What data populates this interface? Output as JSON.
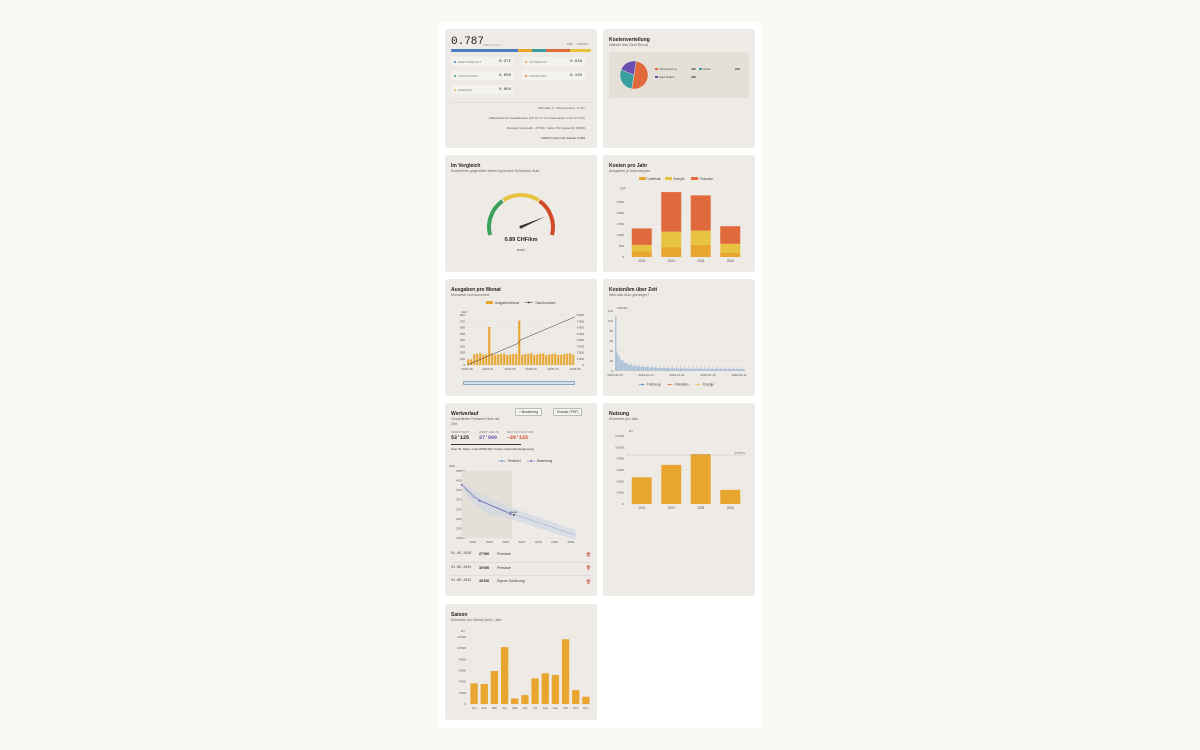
{
  "summary": {
    "value": "0.787",
    "value_unit": "CHF pro 1 km",
    "legend_left": "CHF",
    "legend_right": "TCO Pct",
    "bar_segments": [
      {
        "name": "Wertverlust",
        "fraction": 0.48,
        "color": "#4a7fc0"
      },
      {
        "name": "Unterhalt",
        "fraction": 0.1,
        "color": "#e8a530"
      },
      {
        "name": "Abschreibung",
        "fraction": 0.1,
        "color": "#3a9e9e"
      },
      {
        "name": "Fixkosten",
        "fraction": 0.17,
        "color": "#e06a3b"
      },
      {
        "name": "Energie",
        "fraction": 0.15,
        "color": "#e8c340"
      }
    ],
    "cells": [
      {
        "label": "WERTVERLUST",
        "value": "0.375",
        "color": "#4a7fc0"
      },
      {
        "label": "UNTERHALT",
        "value": "0.038",
        "color": "#e8a530"
      },
      {
        "label": "ZINSKOSTEN",
        "value": "0.000",
        "color": "#3a9e9e"
      },
      {
        "label": "FIXKOSTEN",
        "value": "0.130",
        "color": "#e06a3b"
      },
      {
        "label": "ENERGIE",
        "value": "0.050",
        "color": "#e8c340"
      }
    ],
    "notes": [
      "Wertstatt: 0 · Steuern+Vers.: 0 / km",
      "Kalkulatorische Kapitalkosten (3.5 %): 0 / km (theoretisch, nicht im TCO)",
      "Restwert (manuell): ~27'000 · Netto-TCO (gesamt): 82'800",
      "CHF/km Netto inkl. Kapital: 0.836"
    ]
  },
  "kostenverteilung": {
    "title": "Kostenverteilung",
    "subtitle": "Wählen das Geld Revolt",
    "legend": [
      {
        "label": "Versicherung",
        "value": "425",
        "color": "#e06a3b"
      },
      {
        "label": "Strom",
        "value": "245",
        "color": "#3a9e9e"
      },
      {
        "label": "Kauf Reifen",
        "value": "180",
        "color": "#6a4fb0"
      }
    ],
    "colors": {
      "slice1": "#e06a3b",
      "slice2": "#3a9e9e",
      "slice3": "#6a4fb0"
    }
  },
  "vergleich": {
    "title": "Im Vergleich",
    "subtitle": "Kostenlinie gegenüber einem typischen Schweizer Auto",
    "value": "0.89 CHF/km",
    "label": "teuer",
    "gauge_fraction": 0.82
  },
  "kosten_pro_jahr": {
    "title": "Kosten pro Jahr",
    "subtitle": "Ausgaben je Kalenderjahr",
    "legend": [
      {
        "label": "Unterhalt",
        "color": "#e8a530"
      },
      {
        "label": "Energie",
        "color": "#e8c340"
      },
      {
        "label": "Fixkosten",
        "color": "#e06a3b"
      }
    ],
    "y_unit": "CHF",
    "y_ticks": [
      "0",
      "500",
      "1'000",
      "1'500",
      "2'000",
      "2'500"
    ],
    "x_ticks": [
      "2023",
      "2024",
      "2025",
      "2026"
    ]
  },
  "ausgaben_pro_monat": {
    "title": "Ausgaben pro Monat",
    "subtitle": "Monatlich und kumuliert",
    "legend": [
      "Ausgaben/Monat",
      "Total kumuliert"
    ],
    "y_unit": "CHF",
    "y_left_ticks": [
      "0",
      "100",
      "200",
      "300",
      "400",
      "500",
      "600",
      "700",
      "800"
    ],
    "y_right_ticks": [
      "0",
      "1'000",
      "2'000",
      "3'000",
      "4'000",
      "5'000",
      "6'000",
      "7'000",
      "8'000"
    ],
    "x_ticks": [
      "2023-08",
      "2024-01",
      "2024-06",
      "2025-03",
      "2025-10",
      "2026-05"
    ]
  },
  "kosten_km": {
    "title": "Kosten/km über Zeit",
    "subtitle": "Wird das Auto günstiger?",
    "y_unit": "CHF/km",
    "y_ticks": [
      "0",
      "20",
      "40",
      "60",
      "80",
      "100",
      "120"
    ],
    "x_ticks": [
      "2023-06-15",
      "2024-01-24",
      "2024-07-01",
      "2025-01-15",
      "2026-04-11"
    ],
    "legend": [
      {
        "label": "Fahrzeug",
        "color": "#4a7fc0"
      },
      {
        "label": "Fixkosten",
        "color": "#e06a3b"
      },
      {
        "label": "Energie",
        "color": "#e8c340"
      }
    ]
  },
  "wertverlauf": {
    "title": "Wertverlauf",
    "subtitle": "Geschätzter Restwert über die Zeit",
    "btn_bewertung": "+ Bewertung",
    "btn_dossier": "Dossier (PDF)",
    "kpis": [
      {
        "label": "INVESTIERT",
        "value": "53'125",
        "color": "#222"
      },
      {
        "label": "WERT HEUTE",
        "value": "27'000",
        "color": "#6a4fb0"
      },
      {
        "label": "NETTO-POSITION",
        "value": "−26'125",
        "color": "#d04a2a"
      }
    ],
    "note": "Über 51 Jahre: netto 8'051/Jahr Kosten (nach Wertsteigerung)",
    "legend": [
      "Restwert",
      "Bewertung"
    ],
    "y_unit": "CHF",
    "y_ticks": [
      "15'000",
      "20'000",
      "25'000",
      "30'000",
      "35'000",
      "40'000",
      "45'000",
      "50'000"
    ],
    "x_ticks": [
      "2024",
      "2025",
      "2026",
      "2027",
      "2028",
      "2029",
      "2030"
    ],
    "heute_label": "Heute",
    "rows": [
      {
        "date": "01.05.2026",
        "amount": "27'000",
        "source": "Preisliste"
      },
      {
        "date": "01.06.2024",
        "amount": "30'000",
        "source": "Preisliste"
      },
      {
        "date": "01.06.2023",
        "amount": "49'100",
        "source": "Eigene Schätzung"
      }
    ]
  },
  "nutzung": {
    "title": "Nutzung",
    "subtitle": "Kilometer pro Jahr",
    "y_unit": "km",
    "y_ticks": [
      "0",
      "2'000",
      "4'000",
      "6'000",
      "8'000",
      "10'000",
      "12'000"
    ],
    "x_ticks": [
      "2023",
      "2024",
      "2025",
      "2026"
    ],
    "avg_label": "Ø 8'631",
    "chart_data": {
      "type": "bar",
      "categories": [
        "2023",
        "2024",
        "2025",
        "2026"
      ],
      "values": [
        4700,
        6900,
        8800,
        2500
      ],
      "ylim": [
        0,
        12000
      ],
      "avg": 8631
    }
  },
  "saison": {
    "title": "Saison",
    "subtitle": "Kilometer pro Monat (leer), Jahr",
    "y_unit": "km",
    "y_ticks": [
      "0",
      "2'000",
      "4'000",
      "6'000",
      "8'000",
      "10'000",
      "12'000"
    ],
    "chart_data": {
      "type": "bar",
      "categories": [
        "Jan",
        "Feb",
        "Mär",
        "Apr",
        "Mai",
        "Jun",
        "Jul",
        "Aug",
        "Sep",
        "Okt",
        "Nov",
        "Dez"
      ],
      "values": [
        3700,
        3600,
        5900,
        10200,
        1000,
        1600,
        4600,
        5500,
        5200,
        11600,
        2500,
        1300
      ],
      "ylim": [
        0,
        12000
      ]
    }
  },
  "chart_data": [
    {
      "type": "bar",
      "title": "Kosten pro Jahr",
      "categories": [
        "2023",
        "2024",
        "2025",
        "2026"
      ],
      "series": [
        {
          "name": "Unterhalt",
          "values": [
            250,
            450,
            550,
            200
          ]
        },
        {
          "name": "Energie",
          "values": [
            300,
            700,
            650,
            400
          ]
        },
        {
          "name": "Fixkosten",
          "values": [
            750,
            1800,
            1600,
            800
          ]
        }
      ],
      "ylim": [
        0,
        3000
      ]
    },
    {
      "type": "pie",
      "title": "Kostenverteilung",
      "categories": [
        "Versicherung",
        "Strom",
        "Kauf Reifen"
      ],
      "values": [
        425,
        245,
        180
      ]
    }
  ]
}
